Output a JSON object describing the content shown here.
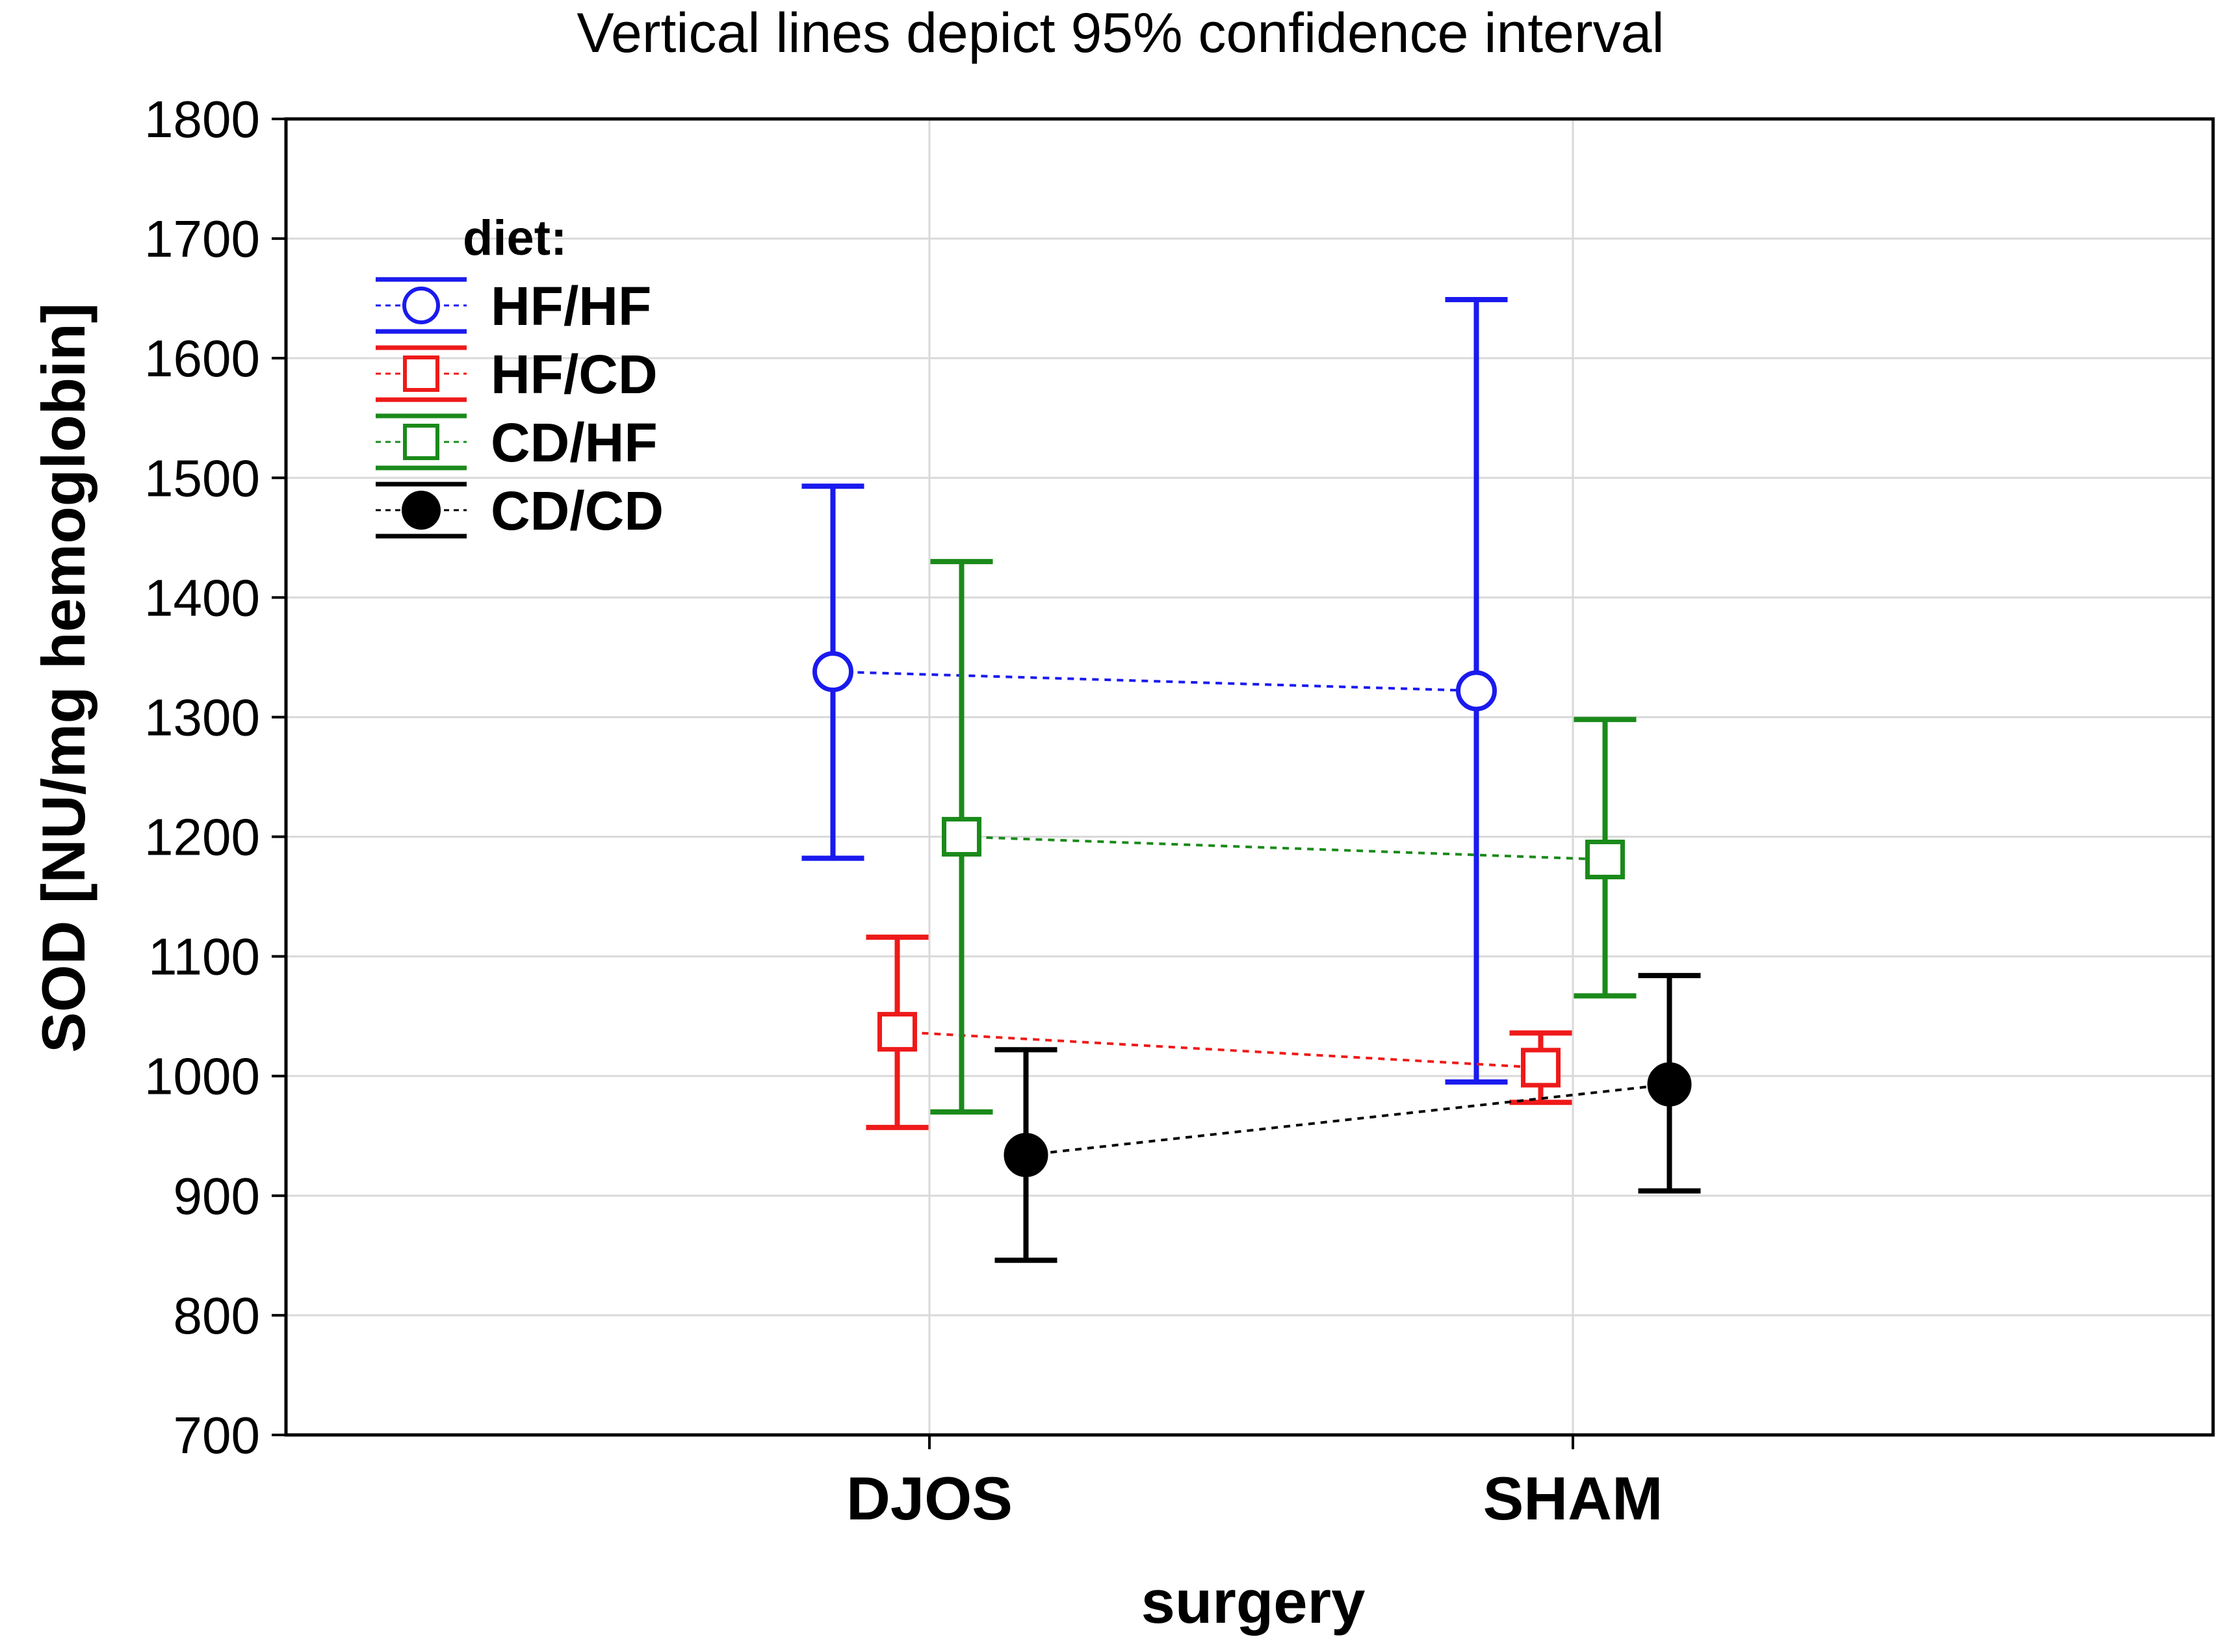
{
  "chart_data": {
    "type": "errorbar",
    "title": "Vertical lines depict 95% confidence interval",
    "xlabel": "surgery",
    "ylabel": "SOD [NU/mg hemoglobin]",
    "categories": [
      "DJOS",
      "SHAM"
    ],
    "ylim": [
      700,
      1800
    ],
    "yticks": [
      700,
      800,
      900,
      1000,
      1100,
      1200,
      1300,
      1400,
      1500,
      1600,
      1700,
      1800
    ],
    "grid": true,
    "legend": {
      "title": "diet:",
      "position": "top-left"
    },
    "series": [
      {
        "name": "HF/HF",
        "color": "#1a1aee",
        "marker": "circle-open",
        "offset": -0.45,
        "values": [
          1338,
          1322
        ],
        "ci_low": [
          1182,
          995
        ],
        "ci_high": [
          1493,
          1649
        ]
      },
      {
        "name": "HF/CD",
        "color": "#ee1a1a",
        "marker": "square-open",
        "offset": -0.15,
        "values": [
          1037,
          1007
        ],
        "ci_low": [
          957,
          978
        ],
        "ci_high": [
          1116,
          1036
        ]
      },
      {
        "name": "CD/HF",
        "color": "#1a8a1a",
        "marker": "square-open",
        "offset": 0.15,
        "values": [
          1200,
          1181
        ],
        "ci_low": [
          970,
          1067
        ],
        "ci_high": [
          1430,
          1298
        ]
      },
      {
        "name": "CD/CD",
        "color": "#000000",
        "marker": "circle-filled",
        "offset": 0.45,
        "values": [
          934,
          993
        ],
        "ci_low": [
          846,
          904
        ],
        "ci_high": [
          1022,
          1084
        ]
      }
    ]
  }
}
